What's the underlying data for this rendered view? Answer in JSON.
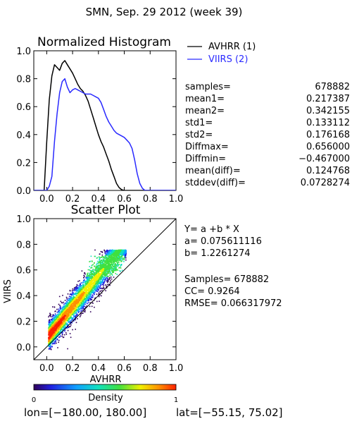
{
  "header": {
    "title": "SMN,  Sep. 29 2012 (week 39)"
  },
  "histogram": {
    "title": "Normalized Histogram",
    "legend": [
      {
        "name": "AVHRR (1)",
        "color": "#000000"
      },
      {
        "name": "VIIRS (2)",
        "color": "#2a2aff"
      }
    ],
    "stats": [
      {
        "label": "samples=",
        "value": "678882"
      },
      {
        "label": "mean1=",
        "value": "0.217387"
      },
      {
        "label": "mean2=",
        "value": "0.342155"
      },
      {
        "label": "std1=",
        "value": "0.133112"
      },
      {
        "label": "std2=",
        "value": "0.176168"
      },
      {
        "label": "Diffmax=",
        "value": "0.656000"
      },
      {
        "label": "Diffmin=",
        "value": "−0.467000"
      },
      {
        "label": "mean(diff)=",
        "value": "0.124768"
      },
      {
        "label": "stddev(diff)=",
        "value": "0.0728274"
      }
    ]
  },
  "scatter": {
    "title": "Scatter Plot",
    "xlabel": "AVHRR",
    "ylabel": "VIIRS",
    "fit": [
      "Y= a +b * X",
      "a= 0.075611116",
      "b= 1.2261274"
    ],
    "metrics": [
      "Samples= 678882",
      "CC=  0.9264",
      "RMSE= 0.066317972"
    ]
  },
  "colorbar": {
    "label": "Density",
    "min_label": "0",
    "max_label": "1"
  },
  "footer": {
    "lon_label": "lon=[−180.00, 180.00]",
    "lat_label": "lat=[−55.15, 75.02]"
  },
  "chart_data": [
    {
      "type": "line",
      "title": "Normalized Histogram",
      "xlabel": "",
      "ylabel": "",
      "xlim": [
        -0.1,
        1.0
      ],
      "ylim": [
        0.0,
        1.0
      ],
      "xticks": [
        "0.0",
        "0.2",
        "0.4",
        "0.6",
        "0.8",
        "1.0"
      ],
      "yticks": [
        "0.0",
        "0.2",
        "0.4",
        "0.6",
        "0.8",
        "1.0"
      ],
      "grid": false,
      "legend": "top-right",
      "series": [
        {
          "name": "AVHRR (1)",
          "color": "#000000",
          "x": [
            -0.02,
            0.0,
            0.02,
            0.04,
            0.06,
            0.08,
            0.1,
            0.12,
            0.14,
            0.16,
            0.18,
            0.2,
            0.22,
            0.24,
            0.26,
            0.28,
            0.3,
            0.32,
            0.34,
            0.36,
            0.38,
            0.4,
            0.42,
            0.44,
            0.46,
            0.48,
            0.5,
            0.52,
            0.54,
            0.56,
            0.58,
            0.6
          ],
          "y": [
            0.0,
            0.35,
            0.65,
            0.82,
            0.9,
            0.88,
            0.86,
            0.91,
            0.93,
            0.9,
            0.87,
            0.84,
            0.8,
            0.76,
            0.73,
            0.71,
            0.68,
            0.64,
            0.58,
            0.52,
            0.46,
            0.4,
            0.35,
            0.31,
            0.26,
            0.21,
            0.15,
            0.1,
            0.05,
            0.02,
            0.005,
            0.0
          ]
        },
        {
          "name": "VIIRS (2)",
          "color": "#2a2aff",
          "x": [
            0.0,
            0.02,
            0.04,
            0.06,
            0.08,
            0.1,
            0.12,
            0.14,
            0.16,
            0.18,
            0.2,
            0.22,
            0.24,
            0.26,
            0.28,
            0.3,
            0.32,
            0.34,
            0.36,
            0.38,
            0.4,
            0.42,
            0.44,
            0.46,
            0.48,
            0.5,
            0.52,
            0.54,
            0.56,
            0.58,
            0.6,
            0.62,
            0.64,
            0.66,
            0.68,
            0.7,
            0.72,
            0.74,
            0.76
          ],
          "y": [
            0.0,
            0.03,
            0.1,
            0.35,
            0.55,
            0.7,
            0.78,
            0.8,
            0.74,
            0.7,
            0.72,
            0.73,
            0.72,
            0.71,
            0.7,
            0.69,
            0.69,
            0.69,
            0.68,
            0.67,
            0.66,
            0.63,
            0.58,
            0.53,
            0.49,
            0.46,
            0.43,
            0.41,
            0.4,
            0.39,
            0.38,
            0.36,
            0.34,
            0.3,
            0.22,
            0.12,
            0.05,
            0.015,
            0.0
          ]
        }
      ]
    },
    {
      "type": "heatmap",
      "title": "Scatter Plot",
      "xlabel": "AVHRR",
      "ylabel": "VIIRS",
      "xlim": [
        -0.1,
        1.0
      ],
      "ylim": [
        -0.1,
        1.0
      ],
      "xticks": [
        "0.0",
        "0.2",
        "0.4",
        "0.6",
        "0.8",
        "1.0"
      ],
      "yticks": [
        "0.0",
        "0.2",
        "0.4",
        "0.6",
        "0.8",
        "1.0"
      ],
      "grid": false,
      "reference_line": {
        "x": [
          -0.1,
          1.0
        ],
        "y": [
          -0.1,
          1.0
        ]
      },
      "density_range": [
        0,
        1
      ],
      "colorbar_label": "Density"
    }
  ]
}
